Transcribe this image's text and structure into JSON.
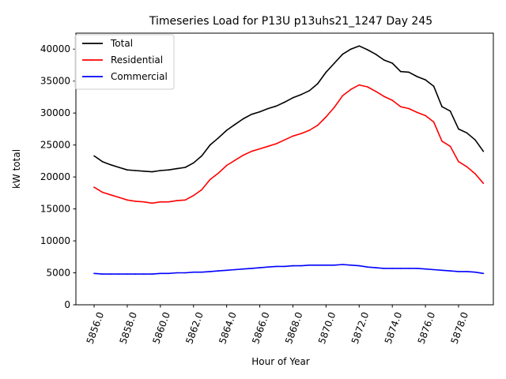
{
  "chart_data": {
    "type": "line",
    "title": "Timeseries Load for P13U p13uhs21_1247  Day 245",
    "xlabel": "Hour of Year",
    "ylabel": "kW total",
    "xlim": [
      5854.9,
      5880.1
    ],
    "ylim": [
      0,
      42500
    ],
    "x_tick_values": [
      5856.0,
      5858.0,
      5860.0,
      5862.0,
      5864.0,
      5866.0,
      5868.0,
      5870.0,
      5872.0,
      5874.0,
      5876.0,
      5878.0
    ],
    "x_tick_labels": [
      "5856.0",
      "5858.0",
      "5860.0",
      "5862.0",
      "5864.0",
      "5866.0",
      "5868.0",
      "5870.0",
      "5872.0",
      "5874.0",
      "5876.0",
      "5878.0"
    ],
    "y_tick_values": [
      0,
      5000,
      10000,
      15000,
      20000,
      25000,
      30000,
      35000,
      40000
    ],
    "y_tick_labels": [
      "0",
      "5000",
      "10000",
      "15000",
      "20000",
      "25000",
      "30000",
      "35000",
      "40000"
    ],
    "legend_position": "upper-left",
    "x": [
      5856.0,
      5856.5,
      5857.0,
      5857.5,
      5858.0,
      5858.5,
      5859.0,
      5859.5,
      5860.0,
      5860.5,
      5861.0,
      5861.5,
      5862.0,
      5862.5,
      5863.0,
      5863.5,
      5864.0,
      5864.5,
      5865.0,
      5865.5,
      5866.0,
      5866.5,
      5867.0,
      5867.5,
      5868.0,
      5868.5,
      5869.0,
      5869.5,
      5870.0,
      5870.5,
      5871.0,
      5871.5,
      5872.0,
      5872.5,
      5873.0,
      5873.5,
      5874.0,
      5874.5,
      5875.0,
      5875.5,
      5876.0,
      5876.5,
      5877.0,
      5877.5,
      5878.0,
      5878.5,
      5879.0,
      5879.5
    ],
    "series": [
      {
        "name": "Total",
        "color": "#000000",
        "values": [
          23300,
          22400,
          21900,
          21500,
          21100,
          21000,
          20900,
          20800,
          21000,
          21100,
          21300,
          21500,
          22200,
          23300,
          25000,
          26100,
          27300,
          28200,
          29100,
          29800,
          30200,
          30700,
          31100,
          31700,
          32400,
          32900,
          33500,
          34600,
          36400,
          37800,
          39200,
          40000,
          40500,
          39900,
          39200,
          38300,
          37800,
          36500,
          36400,
          35700,
          35200,
          34200,
          31000,
          30300,
          27500,
          26900,
          25800,
          24000
        ]
      },
      {
        "name": "Residential",
        "color": "#ff0000",
        "values": [
          18400,
          17600,
          17200,
          16800,
          16400,
          16200,
          16100,
          15900,
          16100,
          16100,
          16300,
          16400,
          17100,
          18000,
          19600,
          20600,
          21800,
          22600,
          23400,
          24000,
          24400,
          24800,
          25200,
          25800,
          26400,
          26800,
          27300,
          28100,
          29400,
          30900,
          32700,
          33700,
          34400,
          34100,
          33400,
          32600,
          32000,
          31000,
          30700,
          30100,
          29600,
          28600,
          25600,
          24800,
          22400,
          21600,
          20500,
          19000
        ]
      },
      {
        "name": "Commercial",
        "color": "#0000ff",
        "values": [
          4900,
          4800,
          4800,
          4800,
          4800,
          4800,
          4800,
          4800,
          4900,
          4900,
          5000,
          5000,
          5100,
          5100,
          5200,
          5300,
          5400,
          5500,
          5600,
          5700,
          5800,
          5900,
          6000,
          6000,
          6100,
          6100,
          6200,
          6200,
          6200,
          6200,
          6300,
          6200,
          6100,
          5900,
          5800,
          5700,
          5700,
          5700,
          5700,
          5700,
          5600,
          5500,
          5400,
          5300,
          5200,
          5200,
          5100,
          4900
        ]
      }
    ]
  }
}
